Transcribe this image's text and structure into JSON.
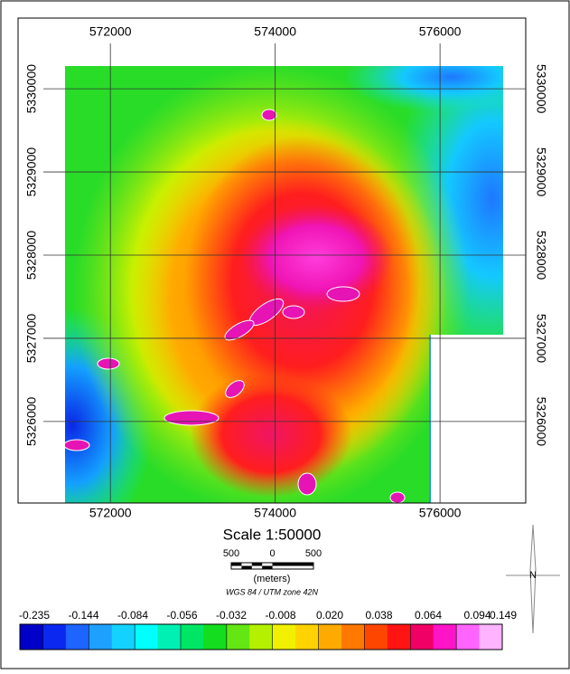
{
  "map": {
    "xticks": [
      572000,
      574000,
      576000
    ],
    "yticks": [
      5330000,
      5329000,
      5328000,
      5327000,
      5326000
    ],
    "xlim": [
      570880,
      577040
    ],
    "ylim": [
      5325020,
      5330850
    ],
    "grid": true,
    "scale_title": "Scale 1:50000",
    "scale_bar_labels": [
      "500",
      "0",
      "500"
    ],
    "scale_units": "(meters)",
    "projection": "WGS 84 / UTM zone 42N",
    "north_label": "N",
    "colorbar": {
      "labels": [
        "-0.235",
        "-0.144",
        "-0.084",
        "-0.056",
        "-0.032",
        "-0.008",
        "0.020",
        "0.038",
        "0.064",
        "0.094",
        "0.149"
      ],
      "colors": [
        "#0000c8",
        "#0a28f0",
        "#1e64ff",
        "#1ea0ff",
        "#14d2ff",
        "#00ffff",
        "#00f0b4",
        "#00e664",
        "#14dc1e",
        "#64e614",
        "#b4f000",
        "#f0f000",
        "#ffd200",
        "#ffaa00",
        "#ff7800",
        "#ff4600",
        "#ff1414",
        "#f00064",
        "#ff14c8",
        "#ff64ff",
        "#ffb4ff"
      ]
    }
  }
}
